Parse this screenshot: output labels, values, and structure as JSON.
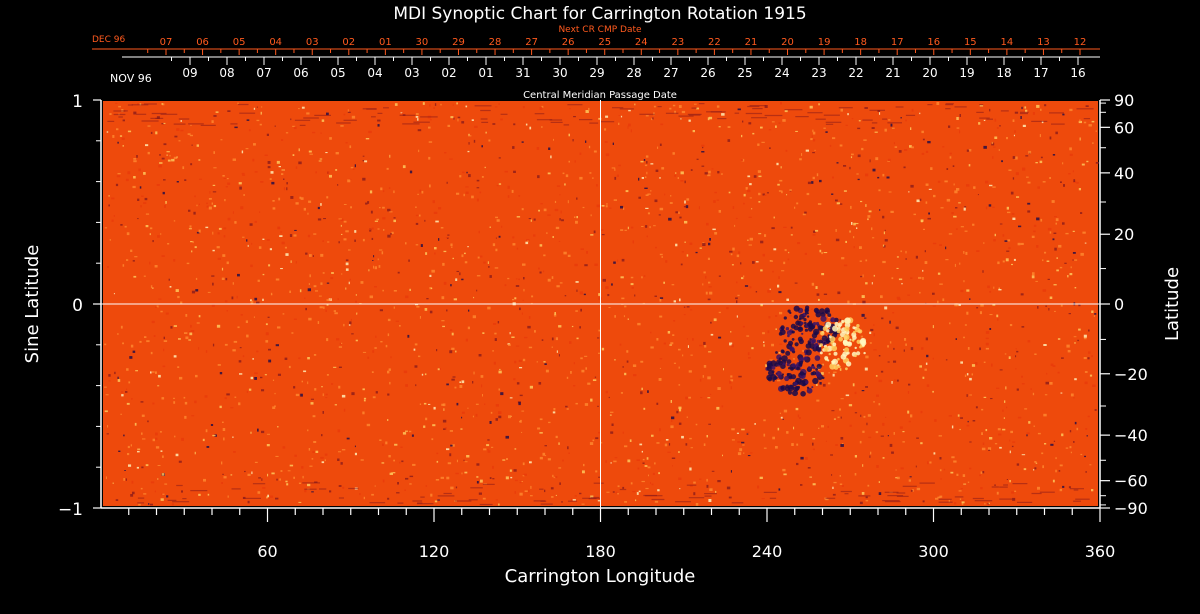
{
  "chart_data": {
    "type": "heatmap",
    "title": "MDI Synoptic Chart for Carrington Rotation 1915",
    "xlabel": "Carrington Longitude",
    "ylabel_left": "Sine Latitude",
    "ylabel_right": "Latitude",
    "xlim": [
      0,
      360
    ],
    "ylim_sine": [
      -1,
      1
    ],
    "x_ticks": [
      60,
      120,
      180,
      240,
      300,
      360
    ],
    "x_minor_step": 10,
    "y_left_ticks": [
      {
        "value": 1,
        "label": "1"
      },
      {
        "value": 0,
        "label": "0"
      },
      {
        "value": -1,
        "label": "−1"
      }
    ],
    "y_left_minor": [
      0.8,
      0.6,
      0.4,
      0.2,
      -0.2,
      -0.4,
      -0.6,
      -0.8
    ],
    "y_right_ticks": [
      {
        "deg": 90,
        "label": "90"
      },
      {
        "deg": 60,
        "label": "60"
      },
      {
        "deg": 40,
        "label": "40"
      },
      {
        "deg": 20,
        "label": "20"
      },
      {
        "deg": 0,
        "label": "0"
      },
      {
        "deg": -20,
        "label": "−20"
      },
      {
        "deg": -40,
        "label": "−40"
      },
      {
        "deg": -60,
        "label": "−60"
      },
      {
        "deg": -90,
        "label": "−90"
      }
    ],
    "y_right_minor": [
      70,
      50,
      30,
      10,
      -10,
      -30,
      -50,
      -70,
      80,
      -80
    ],
    "crosshair": {
      "longitude": 180,
      "sine_latitude": 0
    },
    "cmp_axis": {
      "label": "Central Meridian Passage Date",
      "month_label": "NOV 96",
      "dates": [
        "09",
        "08",
        "07",
        "06",
        "05",
        "04",
        "03",
        "02",
        "01",
        "31",
        "30",
        "29",
        "28",
        "27",
        "26",
        "25",
        "24",
        "23",
        "22",
        "21",
        "20",
        "19",
        "18",
        "17",
        "16"
      ]
    },
    "next_cmp_axis": {
      "label": "Next CR CMP Date",
      "month_label": "DEC 96",
      "dates": [
        "07",
        "06",
        "05",
        "04",
        "03",
        "02",
        "01",
        "30",
        "29",
        "28",
        "27",
        "26",
        "25",
        "24",
        "23",
        "22",
        "21",
        "20",
        "19",
        "18",
        "17",
        "16",
        "15",
        "14",
        "13",
        "12"
      ]
    },
    "colormap": [
      "#1a0a4a",
      "#8b1a1a",
      "#e83a0a",
      "#ff5a10",
      "#ff8a30",
      "#ffd060",
      "#fff8c0"
    ],
    "features": [
      {
        "name": "negative-polarity-region",
        "lon": 255,
        "sinlat": -0.12,
        "polarity": "negative"
      },
      {
        "name": "positive-polarity-region",
        "lon": 267,
        "sinlat": -0.2,
        "polarity": "positive"
      },
      {
        "name": "negative-polarity-trail",
        "lon": 250,
        "sinlat": -0.33,
        "polarity": "negative"
      }
    ]
  },
  "colors": {
    "background": "#000000",
    "axis": "#ffffff",
    "top_axis": "#ff5a1e",
    "map_base": "#ee4a0c"
  }
}
